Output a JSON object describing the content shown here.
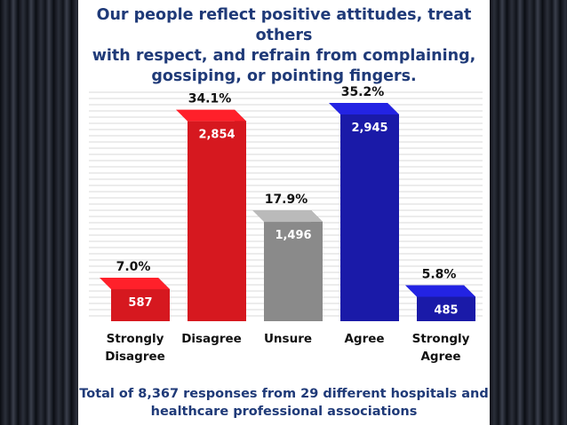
{
  "title_lines": [
    "Our people reflect positive attitudes, treat others",
    "with respect, and refrain from complaining,",
    "gossiping, or pointing fingers."
  ],
  "footnote_lines": [
    "Total of 8,367 responses from 29 different hospitals and",
    "healthcare professional associations"
  ],
  "colors": {
    "background": "#0b0d12",
    "panel": "#ffffff",
    "text_blue": "#1f3a78"
  },
  "chart_data": {
    "type": "bar",
    "title": "Our people reflect positive attitudes, treat others with respect, and refrain from complaining, gossiping, or pointing fingers.",
    "categories": [
      {
        "lines": [
          "Strongly",
          "Disagree"
        ],
        "label": "Strongly Disagree"
      },
      {
        "lines": [
          "Disagree"
        ],
        "label": "Disagree"
      },
      {
        "lines": [
          "Unsure"
        ],
        "label": "Unsure"
      },
      {
        "lines": [
          "Agree"
        ],
        "label": "Agree"
      },
      {
        "lines": [
          "Strongly",
          "Agree"
        ],
        "label": "Strongly Agree"
      }
    ],
    "values": [
      587,
      2854,
      1496,
      2945,
      485
    ],
    "value_labels": [
      "587",
      "2,854",
      "1,496",
      "2,945",
      "485"
    ],
    "percentages": [
      "7.0%",
      "34.1%",
      "17.9%",
      "35.2%",
      "5.8%"
    ],
    "bar_colors": [
      "#d6181f",
      "#d6181f",
      "#8a8a8a",
      "#1a1aa8",
      "#1a1aa8"
    ],
    "ylim": [
      0,
      3000
    ],
    "grid": true,
    "xlabel": "",
    "ylabel": ""
  }
}
